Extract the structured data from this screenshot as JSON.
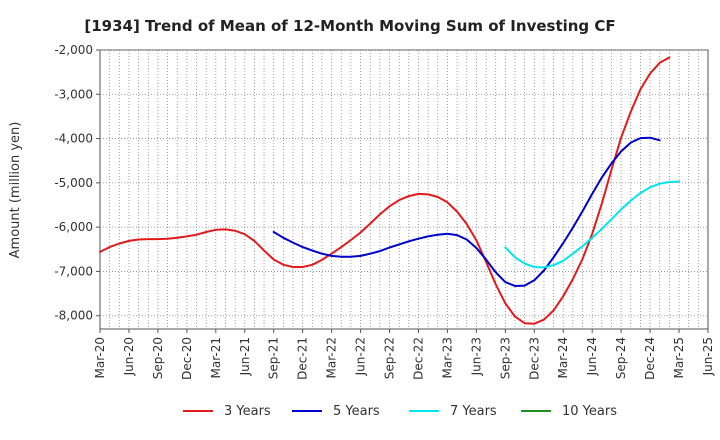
{
  "chart_data": {
    "type": "line",
    "title": "[1934]  Trend of Mean of 12-Month Moving Sum of Investing CF",
    "xlabel": "",
    "ylabel": "Amount (million yen)",
    "ylim": [
      -8300,
      -2000
    ],
    "yticks": [
      -2000,
      -3000,
      -4000,
      -5000,
      -6000,
      -7000,
      -8000
    ],
    "ytick_labels": [
      "-2,000",
      "-3,000",
      "-4,000",
      "-5,000",
      "-6,000",
      "-7,000",
      "-8,000"
    ],
    "x_tick_labels": [
      "Mar-20",
      "Jun-20",
      "Sep-20",
      "Dec-20",
      "Mar-21",
      "Jun-21",
      "Sep-21",
      "Dec-21",
      "Mar-22",
      "Jun-22",
      "Sep-22",
      "Dec-22",
      "Mar-23",
      "Jun-23",
      "Sep-23",
      "Dec-23",
      "Mar-24",
      "Jun-24",
      "Sep-24",
      "Dec-24",
      "Mar-25",
      "Jun-25"
    ],
    "x_start": "Mar-20",
    "grid": true,
    "legend_position": "bottom",
    "series": [
      {
        "name": "3 Years",
        "color": "#e31a1c",
        "start_index": 0,
        "values": [
          -6560,
          -6450,
          -6370,
          -6310,
          -6280,
          -6270,
          -6270,
          -6260,
          -6240,
          -6210,
          -6170,
          -6110,
          -6060,
          -6050,
          -6080,
          -6160,
          -6310,
          -6530,
          -6730,
          -6850,
          -6900,
          -6900,
          -6850,
          -6740,
          -6600,
          -6450,
          -6290,
          -6120,
          -5920,
          -5710,
          -5530,
          -5390,
          -5300,
          -5250,
          -5260,
          -5320,
          -5440,
          -5650,
          -5930,
          -6300,
          -6780,
          -7290,
          -7720,
          -8020,
          -8170,
          -8180,
          -8090,
          -7880,
          -7560,
          -7170,
          -6720,
          -6150,
          -5470,
          -4700,
          -3980,
          -3390,
          -2890,
          -2530,
          -2290,
          -2170
        ]
      },
      {
        "name": "5 Years",
        "color": "#0000cc",
        "start_index": 18,
        "values": [
          -6110,
          -6240,
          -6350,
          -6450,
          -6530,
          -6600,
          -6650,
          -6670,
          -6670,
          -6650,
          -6600,
          -6540,
          -6460,
          -6390,
          -6320,
          -6260,
          -6210,
          -6170,
          -6150,
          -6180,
          -6280,
          -6470,
          -6730,
          -7020,
          -7240,
          -7330,
          -7320,
          -7200,
          -6980,
          -6680,
          -6360,
          -6010,
          -5640,
          -5250,
          -4880,
          -4560,
          -4290,
          -4090,
          -3990,
          -3980,
          -4040
        ]
      },
      {
        "name": "7 Years",
        "color": "#00e5ee",
        "start_index": 42,
        "values": [
          -6460,
          -6680,
          -6820,
          -6900,
          -6910,
          -6860,
          -6760,
          -6600,
          -6430,
          -6240,
          -6040,
          -5820,
          -5600,
          -5400,
          -5230,
          -5100,
          -5020,
          -4980,
          -4970
        ]
      },
      {
        "name": "10 Years",
        "color": "#228b22",
        "start_index": 0,
        "values": []
      }
    ]
  }
}
